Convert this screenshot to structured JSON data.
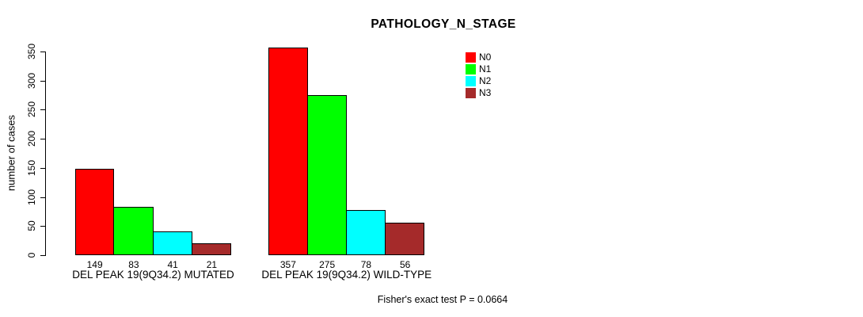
{
  "chart_data": {
    "type": "bar",
    "title": "PATHOLOGY_N_STAGE",
    "xlabel": "",
    "ylabel": "number of cases",
    "ylim": [
      0,
      350
    ],
    "yticks": [
      0,
      50,
      100,
      150,
      200,
      250,
      300,
      350
    ],
    "grid": false,
    "categories": [
      "DEL PEAK 19(9Q34.2) MUTATED",
      "DEL PEAK 19(9Q34.2) WILD-TYPE"
    ],
    "series": [
      {
        "name": "N0",
        "color": "#ff0000",
        "values": [
          149,
          357
        ]
      },
      {
        "name": "N1",
        "color": "#00ff00",
        "values": [
          83,
          275
        ]
      },
      {
        "name": "N2",
        "color": "#00ffff",
        "values": [
          41,
          78
        ]
      },
      {
        "name": "N3",
        "color": "#a52a2a",
        "values": [
          21,
          56
        ]
      }
    ],
    "bar_value_labels_shown": true,
    "legend_position": "top-right",
    "annotations": [
      "Fisher's exact test P = 0.0664"
    ]
  }
}
